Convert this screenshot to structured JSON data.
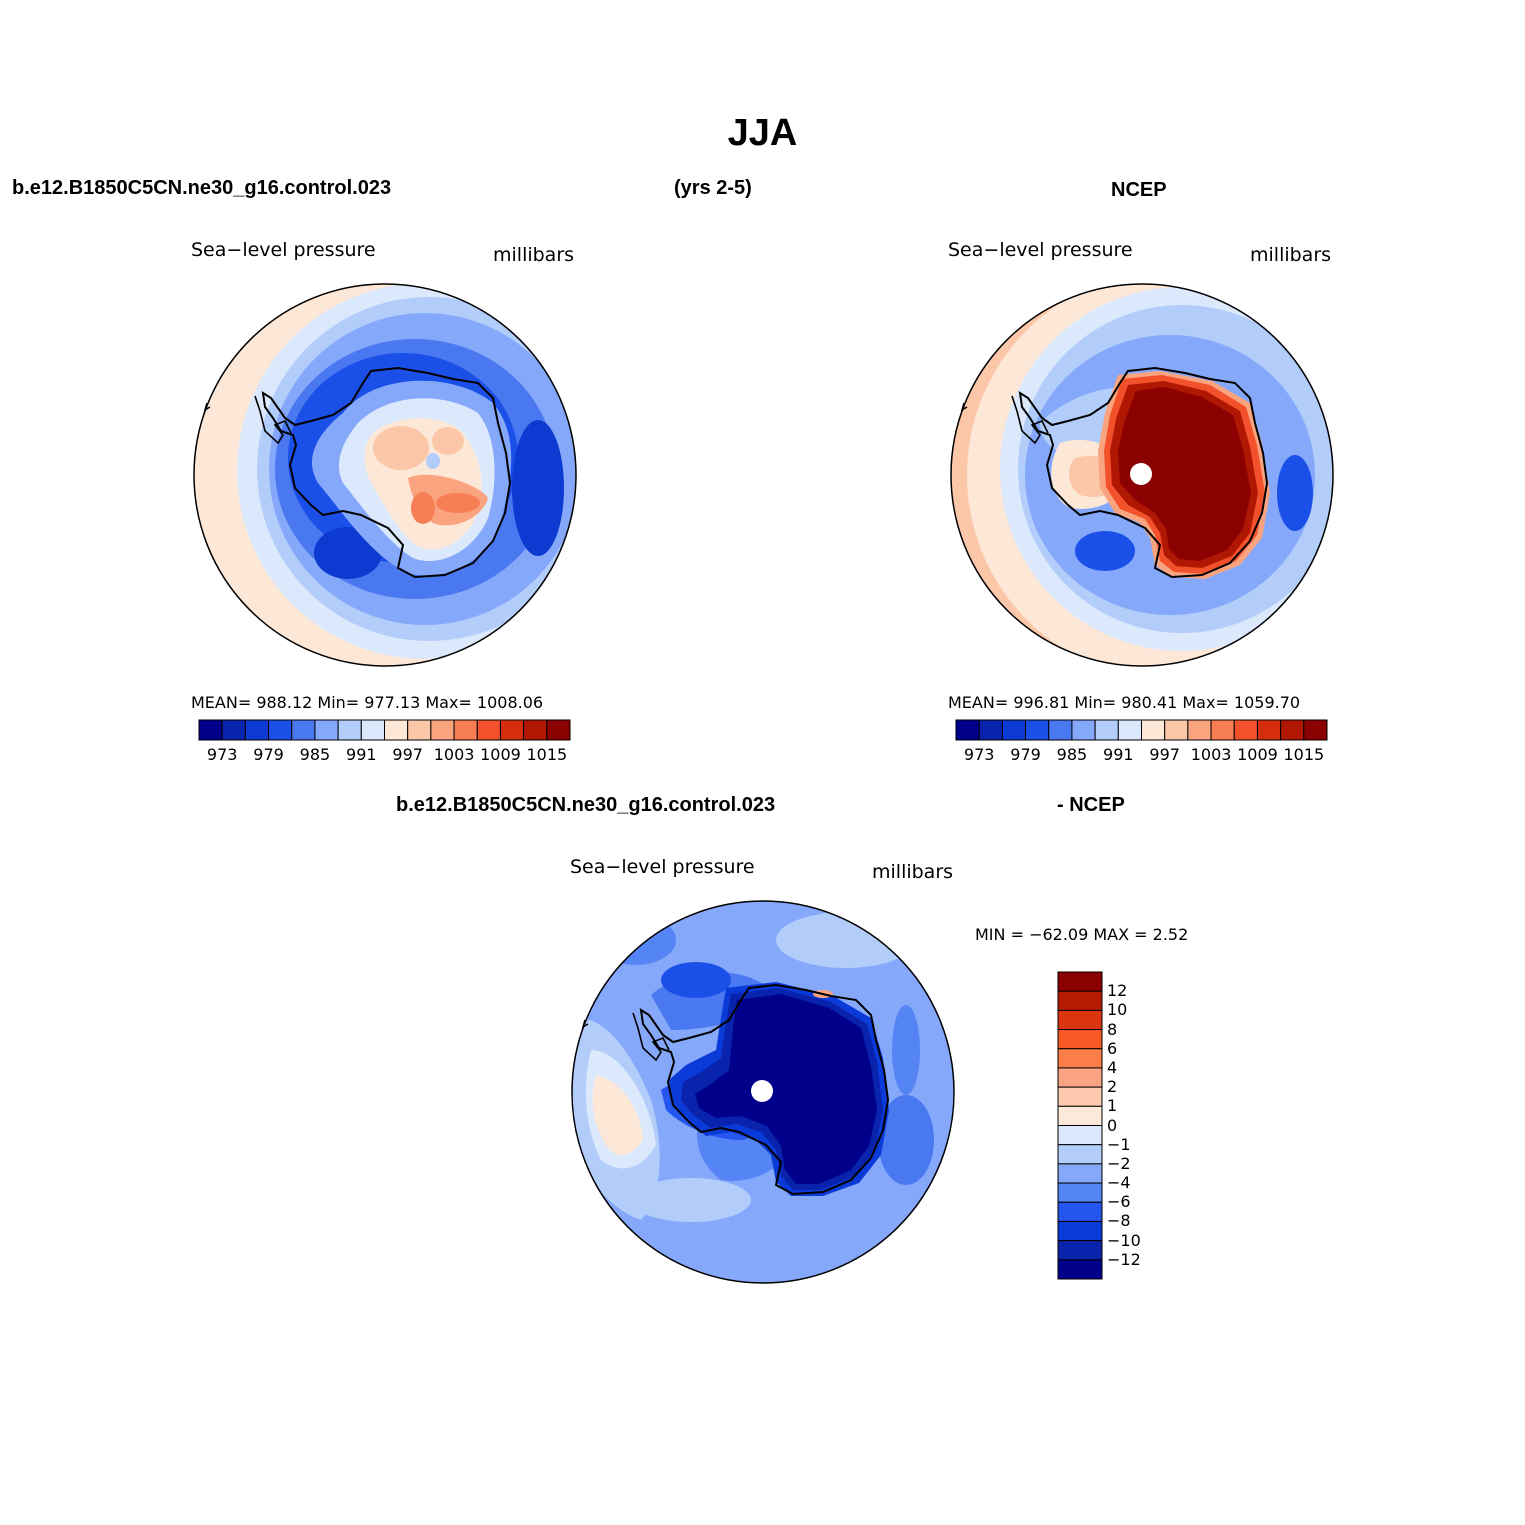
{
  "title": "JJA",
  "top": {
    "left_case": "b.e12.B1850C5CN.ne30_g16.control.023",
    "years": "(yrs 2-5)",
    "right_case": "NCEP"
  },
  "panels": [
    {
      "variable": "Sea−level pressure",
      "units": "millibars",
      "stats": "MEAN= 988.12   Min= 977.13   Max= 1008.06"
    },
    {
      "variable": "Sea−level pressure",
      "units": "millibars",
      "stats": "MEAN= 996.81   Min= 980.41   Max= 1059.70"
    }
  ],
  "diff": {
    "header_left": "b.e12.B1850C5CN.ne30_g16.control.023",
    "header_right": "- NCEP",
    "variable": "Sea−level pressure",
    "units": "millibars",
    "stats": "MIN = −62.09 MAX =    2.52"
  },
  "colorbar_abs": {
    "colors": [
      "#00008b",
      "#0a23ae",
      "#0d3ad0",
      "#1b50e8",
      "#4a78f0",
      "#85a8fa",
      "#b3cdfb",
      "#dce9fc",
      "#fde8d8",
      "#fbc7a8",
      "#f9a47f",
      "#f87e55",
      "#f2512b",
      "#d52e0e",
      "#b01804",
      "#8b0000"
    ],
    "labels": [
      "973",
      "979",
      "985",
      "991",
      "997",
      "1003",
      "1009",
      "1015"
    ]
  },
  "colorbar_diff": {
    "colors": [
      "#8b0000",
      "#b71c02",
      "#da3510",
      "#f75a24",
      "#fb7d48",
      "#fca381",
      "#fdc9ae",
      "#fde9da",
      "#dce9fc",
      "#b3cdfb",
      "#85a8fa",
      "#5584f5",
      "#2556ef",
      "#0a3ad7",
      "#0923ad",
      "#00008b"
    ],
    "labels": [
      "12",
      "10",
      "8",
      "6",
      "4",
      "2",
      "1",
      "0",
      "−1",
      "−2",
      "−4",
      "−6",
      "−8",
      "−10",
      "−12"
    ]
  }
}
